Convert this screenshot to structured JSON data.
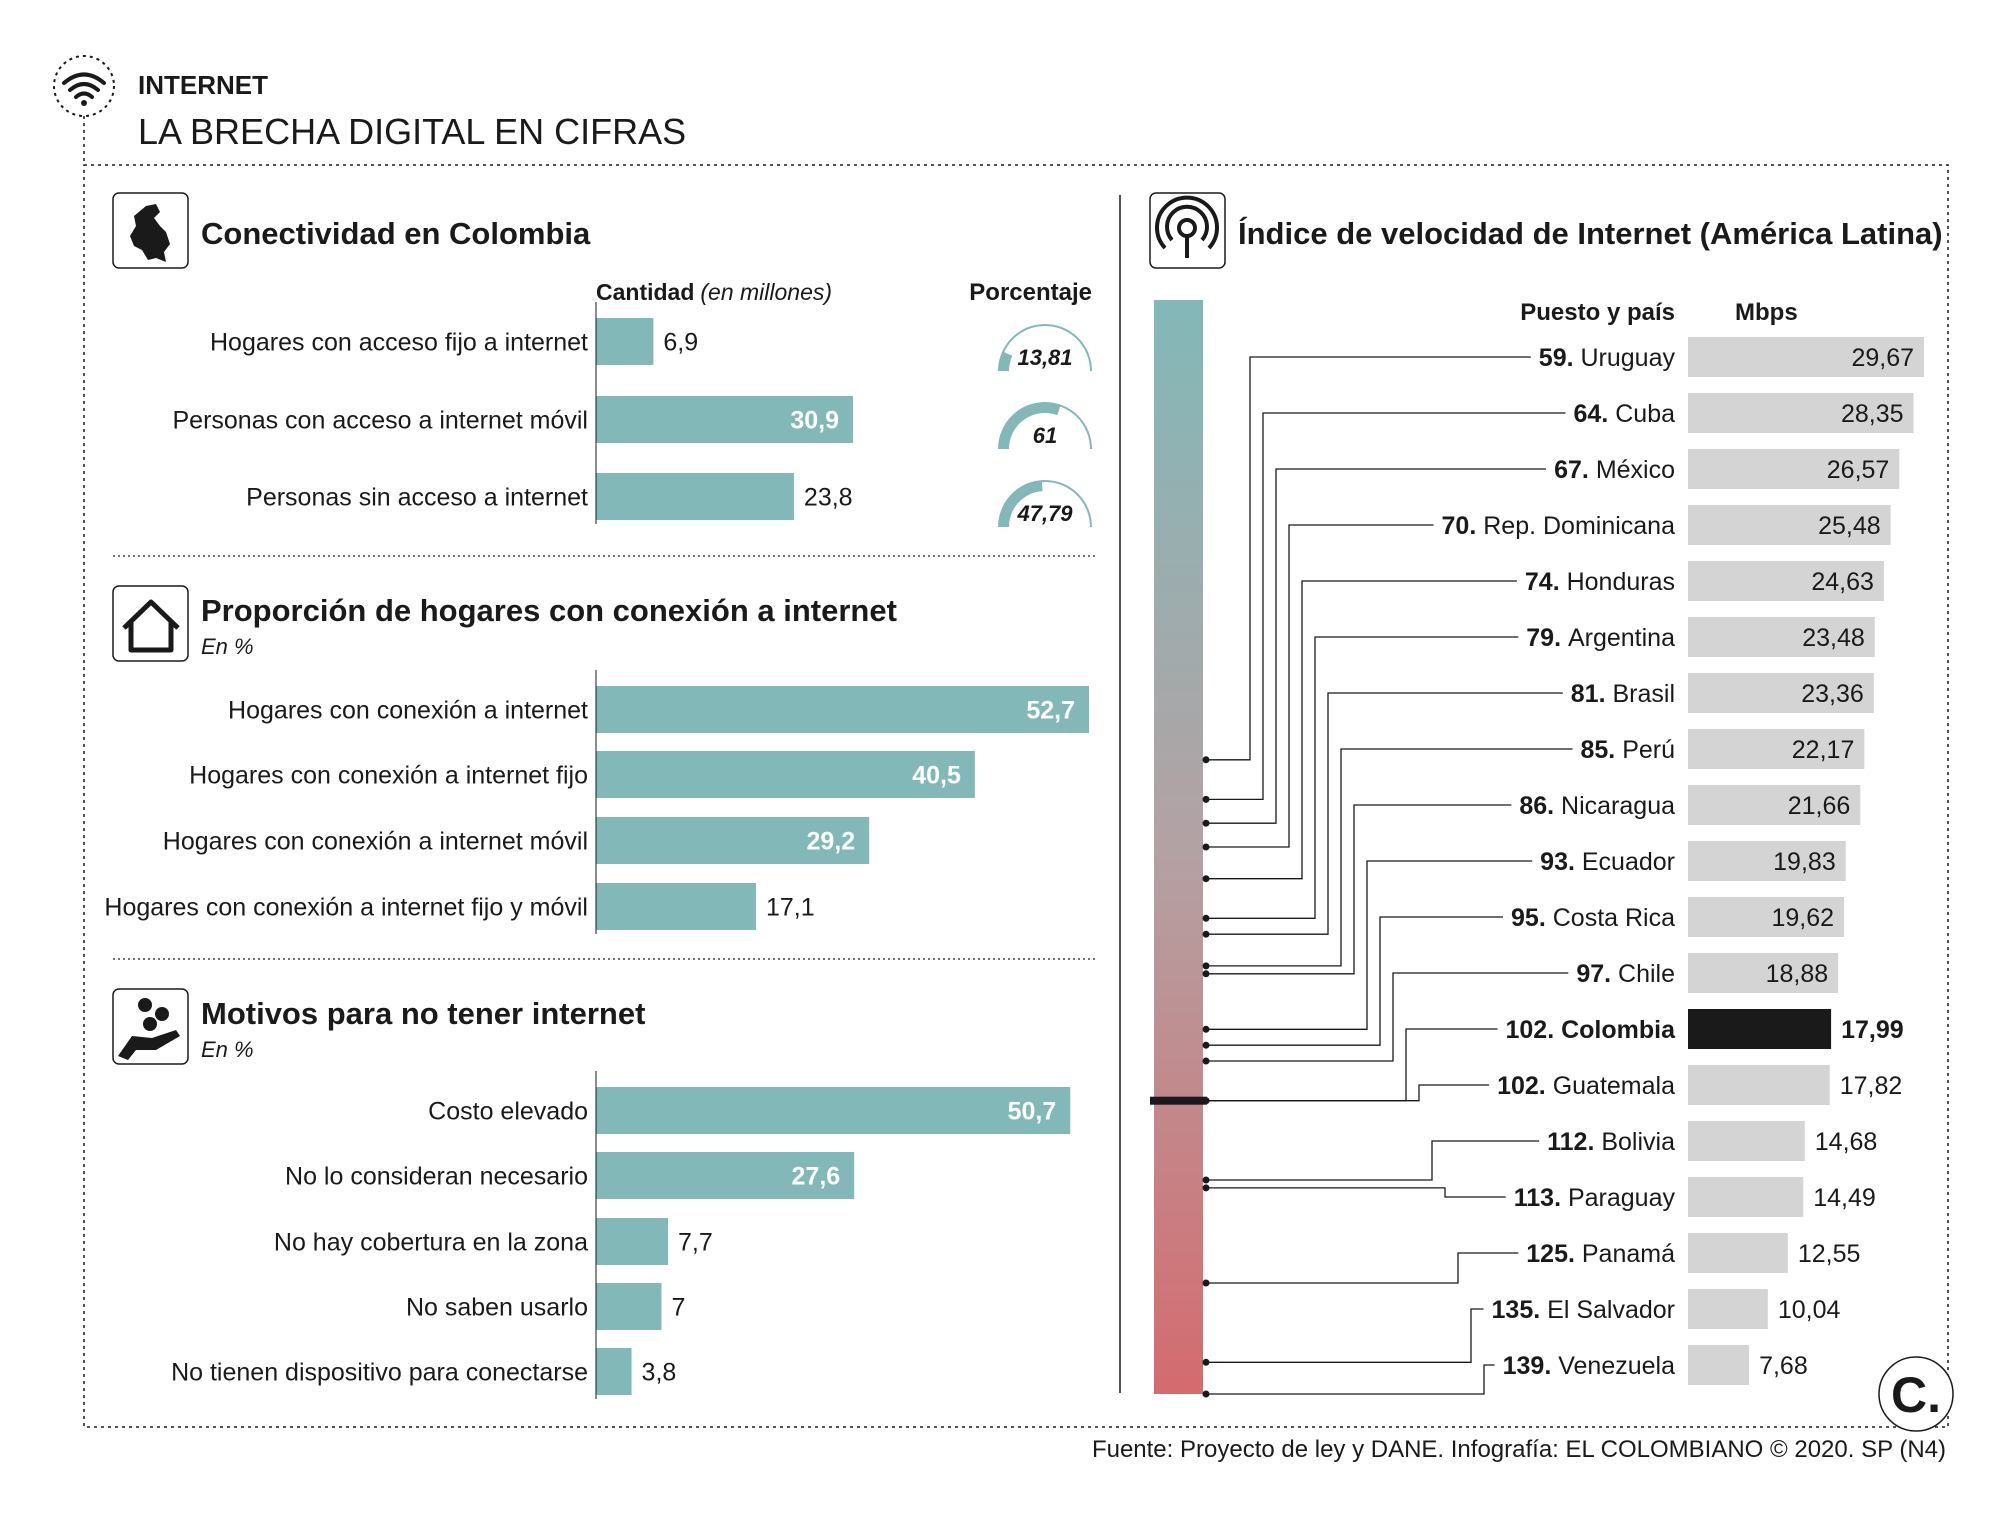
{
  "header": {
    "kicker": "INTERNET",
    "title": "LA BRECHA DIGITAL EN CIFRAS"
  },
  "colors": {
    "teal": "#83b8b8",
    "bar_gray": "#d4d4d4",
    "highlight": "#1a1a1a",
    "text": "#1a1a1a",
    "gradient_top": "#83b8b8",
    "gradient_bottom": "#d46b6f"
  },
  "footer": {
    "source": "Fuente: Proyecto de ley y DANE. Infografía: EL COLOMBIANO © 2020. SP (N4)",
    "logo": "C."
  },
  "chart_data": [
    {
      "id": "conectividad",
      "type": "bar",
      "orientation": "horizontal",
      "title": "Conectividad en Colombia",
      "icon": "colombia-map-icon",
      "col_header_bold": "Cantidad",
      "col_header_italic": "(en millones)",
      "pct_header": "Porcentaje",
      "categories": [
        "Hogares con acceso fijo a internet",
        "Personas con acceso a internet móvil",
        "Personas sin acceso a internet"
      ],
      "values": [
        6.9,
        30.9,
        23.8
      ],
      "labels": [
        "6,9",
        "30,9",
        "23,8"
      ],
      "percent_values": [
        13.81,
        61,
        47.79
      ],
      "percent_labels": [
        "13,81",
        "61",
        "47,79"
      ],
      "xlim": [
        0,
        60
      ]
    },
    {
      "id": "proporcion",
      "type": "bar",
      "orientation": "horizontal",
      "title": "Proporción de hogares con conexión a internet",
      "subtitle": "En %",
      "icon": "house-icon",
      "categories": [
        "Hogares con conexión a internet",
        "Hogares con conexión a internet fijo",
        "Hogares con conexión a internet móvil",
        "Hogares con conexión a internet fijo y móvil"
      ],
      "values": [
        52.7,
        40.5,
        29.2,
        17.1
      ],
      "labels": [
        "52,7",
        "40,5",
        "29,2",
        "17,1"
      ],
      "xlim": [
        0,
        52.7
      ]
    },
    {
      "id": "motivos",
      "type": "bar",
      "orientation": "horizontal",
      "title": "Motivos para no tener internet",
      "subtitle": "En %",
      "icon": "hand-money-icon",
      "categories": [
        "Costo elevado",
        "No lo consideran necesario",
        "No hay cobertura en la zona",
        "No saben usarlo",
        "No tienen dispositivo para conectarse"
      ],
      "values": [
        50.7,
        27.6,
        7.7,
        7,
        3.8
      ],
      "labels": [
        "50,7",
        "27,6",
        "7,7",
        "7",
        "3,8"
      ],
      "xlim": [
        0,
        52.7
      ]
    },
    {
      "id": "velocidad",
      "type": "bar",
      "orientation": "horizontal",
      "title": "Índice de velocidad de Internet (América Latina)",
      "icon": "broadcast-icon",
      "col_rank": "Puesto y país",
      "col_value": "Mbps",
      "ranks": [
        "59.",
        "64.",
        "67.",
        "70.",
        "74.",
        "79.",
        "81.",
        "85.",
        "86.",
        "93.",
        "95.",
        "97.",
        "102.",
        "102.",
        "112.",
        "113.",
        "125.",
        "135.",
        "139."
      ],
      "rank_numbers": [
        59,
        64,
        67,
        70,
        74,
        79,
        81,
        85,
        86,
        93,
        95,
        97,
        102,
        102,
        112,
        113,
        125,
        135,
        139
      ],
      "categories": [
        "Uruguay",
        "Cuba",
        "México",
        "Rep. Dominicana",
        "Honduras",
        "Argentina",
        "Brasil",
        "Perú",
        "Nicaragua",
        "Ecuador",
        "Costa Rica",
        "Chile",
        "Colombia",
        "Guatemala",
        "Bolivia",
        "Paraguay",
        "Panamá",
        "El Salvador",
        "Venezuela"
      ],
      "values": [
        29.67,
        28.35,
        26.57,
        25.48,
        24.63,
        23.48,
        23.36,
        22.17,
        21.66,
        19.83,
        19.62,
        18.88,
        17.99,
        17.82,
        14.68,
        14.49,
        12.55,
        10.04,
        7.68
      ],
      "labels": [
        "29,67",
        "28,35",
        "26,57",
        "25,48",
        "24,63",
        "23,48",
        "23,36",
        "22,17",
        "21,66",
        "19,83",
        "19,62",
        "18,88",
        "17,99",
        "17,82",
        "14,68",
        "14,49",
        "12,55",
        "10,04",
        "7,68"
      ],
      "highlight": "Colombia",
      "rank_axis_range": [
        1,
        139
      ],
      "xlim": [
        0,
        29.67
      ]
    }
  ]
}
